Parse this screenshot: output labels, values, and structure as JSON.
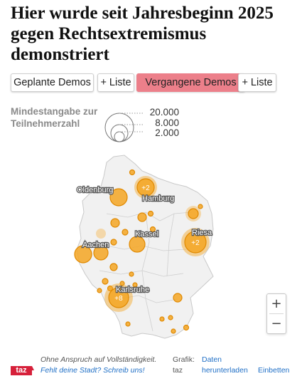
{
  "header": {
    "title": "Hier wurde seit Jahresbeginn 2025 gegen Rechtsextremismus demonstriert"
  },
  "tabs": [
    {
      "label": "Geplante Demos",
      "active": false
    },
    {
      "label": "+ Liste",
      "active": false
    },
    {
      "label": "Vergangene Demos",
      "active": true
    },
    {
      "label": "+ Liste",
      "active": false
    }
  ],
  "legend": {
    "title": "Mindestangabe zur Teilnehmerzahl",
    "values": [
      "20.000",
      "8.000",
      "2.000"
    ]
  },
  "map": {
    "city_labels": [
      "Oldenburg",
      "Hamburg",
      "Kassel",
      "Riesa",
      "Aachen",
      "Karlsruhe"
    ],
    "cluster_counts": [
      "+2",
      "+2",
      "+8"
    ],
    "colors": {
      "marker_fill": "#f5a623",
      "marker_stroke": "#e08900",
      "land": "#f0f0f0",
      "border": "#c9c9c9"
    }
  },
  "zoom": {
    "in_label": "+",
    "out_label": "−"
  },
  "footer": {
    "logo": "taz",
    "disclaimer": "Ohne Anspruch auf Vollständigkeit.",
    "cta": "Fehlt deine Stadt? Schreib uns!",
    "credit_label": "Grafik:",
    "credit_name": "taz",
    "download": "Daten herunterladen",
    "embed": "Einbetten"
  }
}
